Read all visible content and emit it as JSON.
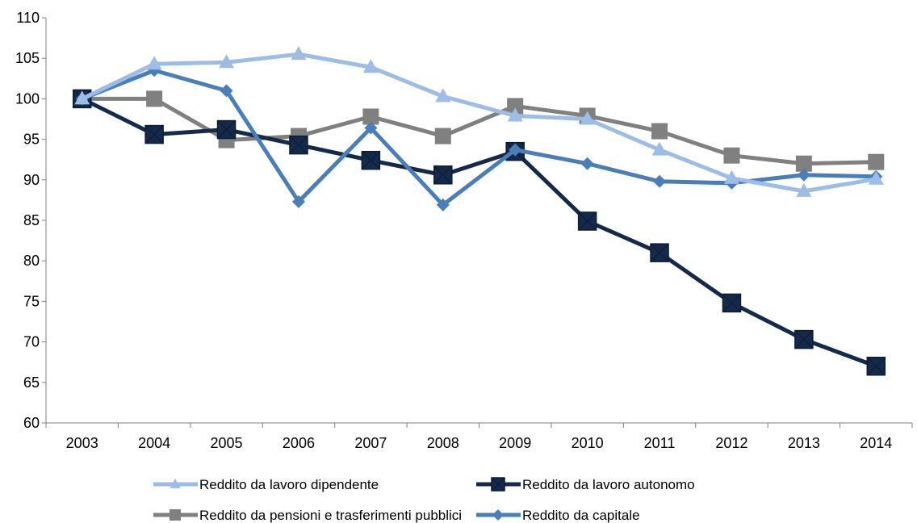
{
  "chart_data": {
    "type": "line",
    "title": "",
    "xlabel": "",
    "ylabel": "",
    "x": [
      "2003",
      "2004",
      "2005",
      "2006",
      "2007",
      "2008",
      "2009",
      "2010",
      "2011",
      "2012",
      "2013",
      "2014"
    ],
    "ylim": [
      60,
      110
    ],
    "yticks": [
      "60",
      "65",
      "70",
      "75",
      "80",
      "85",
      "90",
      "95",
      "100",
      "105",
      "110"
    ],
    "grid": false,
    "legend_position": "bottom",
    "series": [
      {
        "name": "Reddito da lavoro dipendente",
        "color": "#9dbde6",
        "marker": "triangle",
        "values": [
          100,
          104.3,
          104.5,
          105.5,
          103.9,
          100.3,
          97.9,
          97.5,
          93.7,
          90.2,
          88.6,
          90.1
        ]
      },
      {
        "name": "Reddito da lavoro autonomo",
        "color": "#15294a",
        "marker": "square-x",
        "values": [
          100,
          95.6,
          96.2,
          94.3,
          92.4,
          90.6,
          93.5,
          84.9,
          81.0,
          74.8,
          70.3,
          67.0
        ]
      },
      {
        "name": "Reddito da pensioni e trasferimenti pubblici",
        "color": "#808080",
        "marker": "square",
        "values": [
          100,
          100,
          94.9,
          95.4,
          97.8,
          95.4,
          99.1,
          97.9,
          96.0,
          93.0,
          92.0,
          92.2
        ]
      },
      {
        "name": "Reddito da capitale",
        "color": "#4a7ebb",
        "marker": "diamond",
        "values": [
          100,
          103.5,
          101.0,
          87.3,
          96.4,
          86.9,
          93.7,
          92.0,
          89.8,
          89.6,
          90.6,
          90.4
        ]
      }
    ]
  }
}
